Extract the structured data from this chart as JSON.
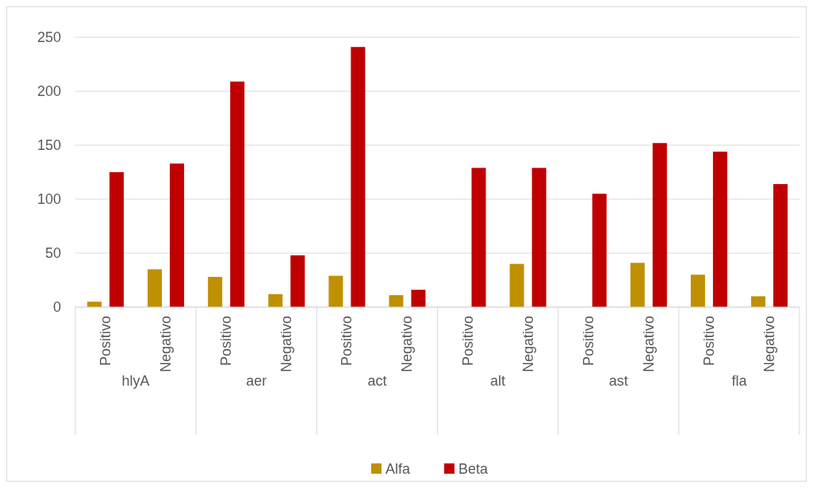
{
  "chart_data": {
    "type": "bar",
    "categories": [
      "Positivo",
      "Negativo",
      "Positivo",
      "Negativo",
      "Positivo",
      "Negativo",
      "Positivo",
      "Negativo",
      "Positivo",
      "Negativo",
      "Positivo",
      "Negativo"
    ],
    "annotations": [
      "hlyA",
      "aer",
      "act",
      "alt",
      "ast",
      "fla"
    ],
    "series": [
      {
        "name": "Alfa",
        "color": "#bf9000",
        "values": [
          5,
          35,
          28,
          12,
          29,
          11,
          0,
          40,
          0,
          41,
          30,
          10
        ]
      },
      {
        "name": "Beta",
        "color": "#c00000",
        "values": [
          125,
          133,
          209,
          48,
          241,
          16,
          129,
          129,
          105,
          152,
          144,
          114
        ]
      }
    ],
    "ylim": [
      0,
      250
    ],
    "yticks": [
      0,
      50,
      100,
      150,
      200,
      250
    ],
    "grid": "y",
    "legend": "bottom"
  }
}
